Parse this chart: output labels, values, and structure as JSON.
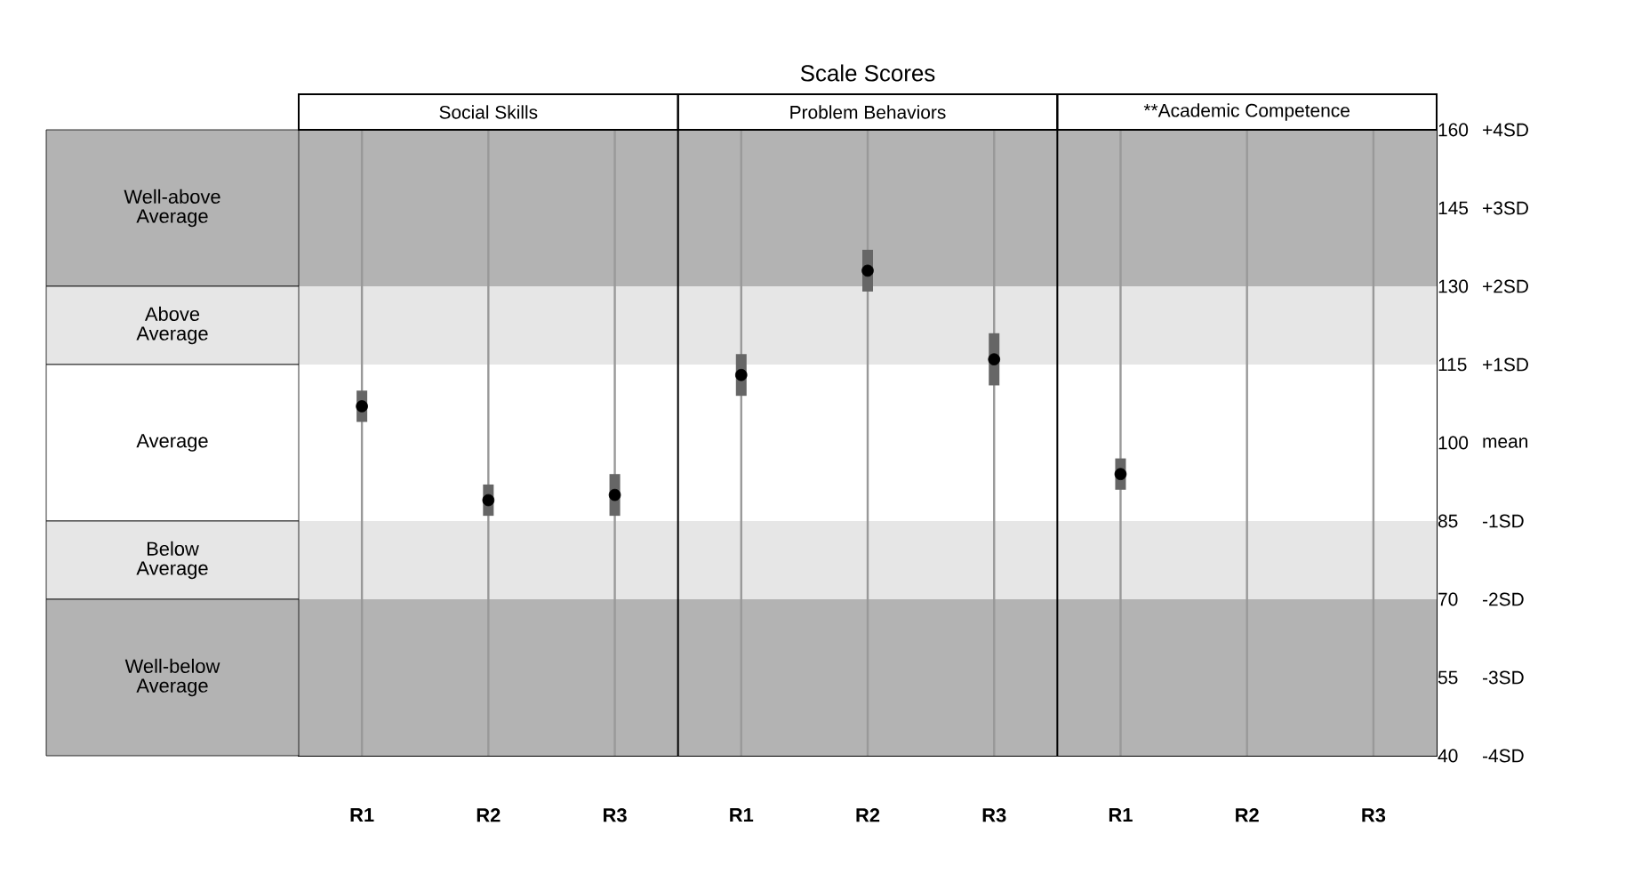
{
  "chart_data": {
    "type": "scatter",
    "title": "Scale Scores",
    "annotations": [
      "Social Skills",
      "Problem Behaviors",
      "**Academic Competence"
    ],
    "categories": [
      "R1",
      "R2",
      "R3",
      "R1",
      "R2",
      "R3",
      "R1",
      "R2",
      "R3"
    ],
    "series": [
      {
        "color": "#000000",
        "values": [
          107,
          89,
          90,
          113,
          133,
          116,
          94,
          null,
          null
        ],
        "errors": [
          3,
          3,
          4,
          4,
          4,
          5,
          3,
          null,
          null
        ]
      }
    ],
    "ylim": [
      40,
      160
    ],
    "yticks": [
      40,
      55,
      70,
      85,
      100,
      115,
      130,
      145,
      160
    ],
    "y2lim": [
      -4,
      4
    ],
    "y2ticks": [
      {
        "value": -4,
        "label": "-4SD"
      },
      {
        "value": -3,
        "label": "-3SD"
      },
      {
        "value": -2,
        "label": "-2SD"
      },
      {
        "value": -1,
        "label": "-1SD"
      },
      {
        "value": 0,
        "label": "mean"
      },
      {
        "value": 1,
        "label": "+1SD"
      },
      {
        "value": 2,
        "label": "+2SD"
      },
      {
        "value": 3,
        "label": "+3SD"
      },
      {
        "value": 4,
        "label": "+4SD"
      }
    ],
    "bands": [
      {
        "axis": "y",
        "from": 130,
        "to": 160,
        "label": "Well-above Average",
        "color": "#b3b3b3"
      },
      {
        "axis": "y",
        "from": 115,
        "to": 130,
        "label": "Above Average",
        "color": "#e6e6e6"
      },
      {
        "axis": "y",
        "from": 85,
        "to": 115,
        "label": "Average",
        "color": "#ffffff"
      },
      {
        "axis": "y",
        "from": 70,
        "to": 85,
        "label": "Below Average",
        "color": "#e6e6e6"
      },
      {
        "axis": "y",
        "from": 40,
        "to": 70,
        "label": "Well-below Average",
        "color": "#b3b3b3"
      }
    ],
    "grid": "x",
    "marker": "circle"
  }
}
